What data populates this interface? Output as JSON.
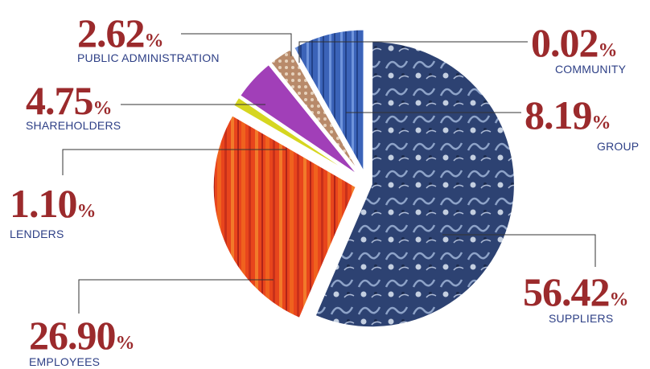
{
  "chart_data": {
    "type": "pie",
    "unit": "%",
    "slices": [
      {
        "label": "SUPPLIERS",
        "value": 56.42,
        "display": "56.42",
        "color": "#2a3f6e"
      },
      {
        "label": "EMPLOYEES",
        "value": 26.9,
        "display": "26.90",
        "color": "#e8451c"
      },
      {
        "label": "LENDERS",
        "value": 1.1,
        "display": "1.10",
        "color": "#d6d620"
      },
      {
        "label": "SHAREHOLDERS",
        "value": 4.75,
        "display": "4.75",
        "color": "#a13fb8"
      },
      {
        "label": "PUBLIC ADMINISTRATION",
        "value": 2.62,
        "display": "2.62",
        "color": "#b88a6a"
      },
      {
        "label": "COMMUNITY",
        "value": 0.02,
        "display": "0.02",
        "color": "#6fa0d8"
      },
      {
        "label": "GROUP",
        "value": 8.19,
        "display": "8.19",
        "color": "#3b63b8"
      }
    ],
    "legend": "none",
    "colors": {
      "percent_text": "#9b2a2c",
      "name_text": "#2d3f86"
    }
  }
}
